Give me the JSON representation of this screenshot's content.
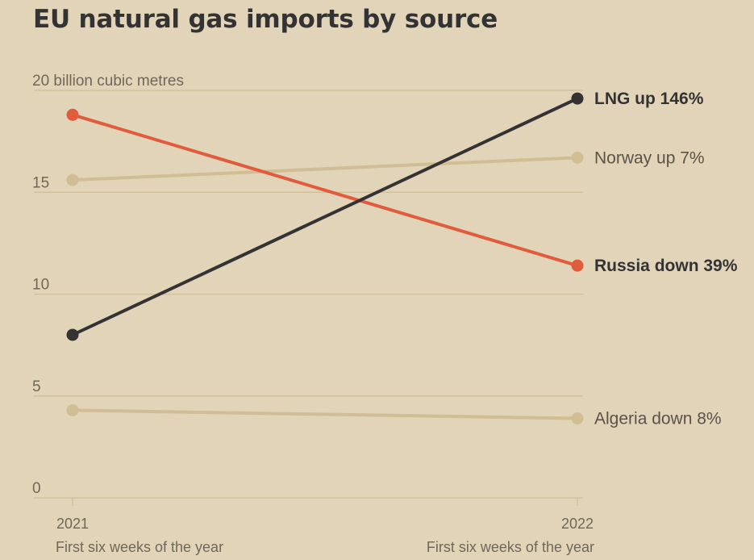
{
  "title": "EU natural gas imports by source",
  "colors": {
    "background": "#e2d4b9",
    "grid": "#cdbd98",
    "lng": "#333333",
    "russia": "#e05c3c",
    "muted": "#d1bd93",
    "text": "#333333",
    "label_muted": "#5a5448"
  },
  "chart_data": {
    "type": "line",
    "title": "EU natural gas imports by source",
    "ylabel": "billion cubic metres",
    "y_ticks": [
      "20 billion cubic metres",
      "15",
      "10",
      "5",
      "0"
    ],
    "x_ticks": [
      "2021",
      "2022"
    ],
    "x_sublabels": [
      "First six weeks of the year",
      "First six weeks of the year"
    ],
    "categories": [
      "2021",
      "2022"
    ],
    "ylim": [
      0,
      20
    ],
    "grid": true,
    "series": [
      {
        "key": "lng",
        "values": [
          8.0,
          19.6
        ],
        "label": "LNG up 146%",
        "bold": true,
        "color": "#333333"
      },
      {
        "key": "norway",
        "values": [
          15.6,
          16.7
        ],
        "label": "Norway up 7%",
        "bold": false,
        "color": "#d1bd93"
      },
      {
        "key": "russia",
        "values": [
          18.8,
          11.4
        ],
        "label": "Russia down 39%",
        "bold": true,
        "color": "#e05c3c"
      },
      {
        "key": "algeria",
        "values": [
          4.3,
          3.9
        ],
        "label": "Algeria down 8%",
        "bold": false,
        "color": "#d1bd93"
      }
    ]
  }
}
